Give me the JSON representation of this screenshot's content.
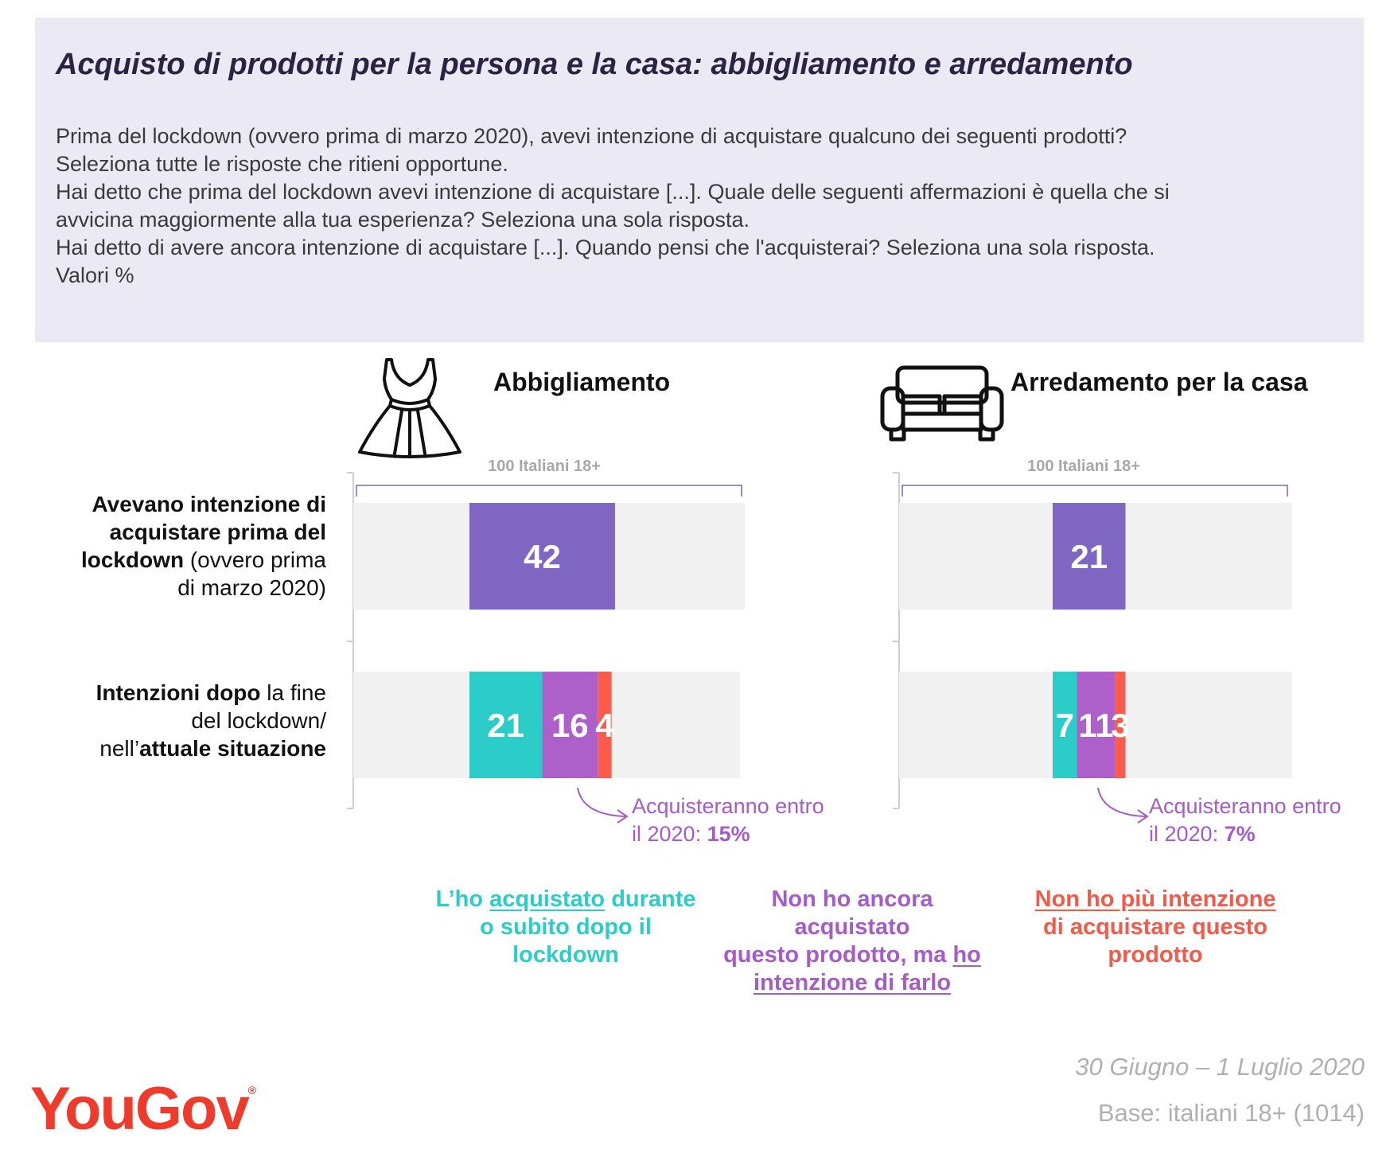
{
  "header": {
    "title": "Acquisto di prodotti per la persona e la casa: abbigliamento e arredamento",
    "question_lines": [
      "Prima del lockdown (ovvero prima di marzo 2020), avevi intenzione di acquistare qualcuno dei seguenti prodotti?",
      "Seleziona tutte le risposte che ritieni opportune.",
      "Hai detto che prima del lockdown avevi intenzione di acquistare [...]. Quale delle seguenti affermazioni è quella che si",
      "avvicina maggiormente alla tua esperienza? Seleziona una sola risposta.",
      "Hai detto di avere ancora intenzione di acquistare [...]. Quando pensi che l'acquisterai? Seleziona una sola risposta.",
      "Valori %"
    ]
  },
  "row_labels": {
    "row1": {
      "b1": "Avevano intenzione di",
      "b2": "acquistare prima del",
      "b3": "lockdown",
      "t3": " (ovvero prima",
      "t4": "di marzo 2020)"
    },
    "row2": {
      "b1": "Intenzioni dopo",
      "t1": " la fine",
      "t2": "del lockdown/",
      "t3": "nell’",
      "b3": "attuale situazione"
    }
  },
  "colors": {
    "intended": "#7e66c2",
    "bought": "#2ccdc9",
    "still_intend": "#ad60c9",
    "no_longer": "#fa5b4a",
    "background_bar": "#f1f1f1",
    "annotation": "#a55cc7"
  },
  "chart_data": [
    {
      "type": "bar",
      "title": "Abbigliamento",
      "icon": "dress-icon",
      "base_label": "100 Italiani 18+",
      "total": 100,
      "rows": [
        {
          "segments": [
            {
              "series": "intended",
              "value": 42,
              "label": "42"
            }
          ]
        },
        {
          "segments": [
            {
              "series": "bought",
              "value": 21,
              "label": "21"
            },
            {
              "series": "still_intend",
              "value": 16,
              "label": "16"
            },
            {
              "series": "no_longer",
              "value": 4,
              "label": "4"
            }
          ]
        }
      ],
      "annotation": {
        "text": "Acquisteranno entro",
        "text2": "il 2020: ",
        "value": "15%"
      }
    },
    {
      "type": "bar",
      "title": "Arredamento per la casa",
      "icon": "sofa-icon",
      "base_label": "100 Italiani 18+",
      "total": 100,
      "rows": [
        {
          "segments": [
            {
              "series": "intended",
              "value": 21,
              "label": "21"
            }
          ]
        },
        {
          "segments": [
            {
              "series": "bought",
              "value": 7,
              "label": "7"
            },
            {
              "series": "still_intend",
              "value": 11,
              "label": "11"
            },
            {
              "series": "no_longer",
              "value": 3,
              "label": "3"
            }
          ]
        }
      ],
      "annotation": {
        "text": "Acquisteranno entro",
        "text2": "il 2020: ",
        "value": "7%"
      }
    }
  ],
  "legend": {
    "bought": {
      "a": "L’ho ",
      "u": "acquistato",
      "b": " durante",
      "c": "o subito dopo il",
      "d": "lockdown"
    },
    "still_intend": {
      "a": "Non ho ancora acquistato",
      "b": "questo prodotto, ma ",
      "u1": "ho",
      "u2": "intenzione di farlo"
    },
    "no_longer": {
      "u": "Non ho più intenzione",
      "b": "di acquistare questo",
      "c": "prodotto"
    }
  },
  "footer": {
    "date": "30 Giugno – 1 Luglio 2020",
    "base": "Base: italiani 18+ (1014)",
    "logo": "YouGov",
    "logo_mark": "®"
  }
}
